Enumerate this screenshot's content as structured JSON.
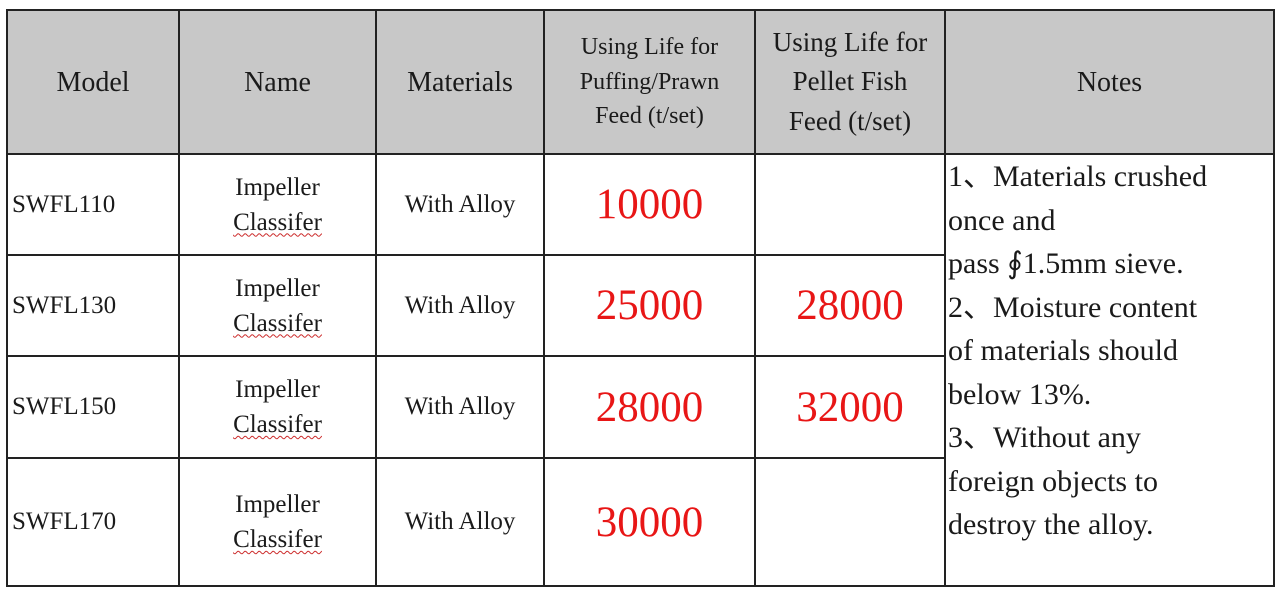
{
  "headers": {
    "model": "Model",
    "name": "Name",
    "materials": "Materials",
    "puffing_line1": "Using Life for",
    "puffing_line2": "Puffing/Prawn",
    "puffing_line3": "Feed (t/set)",
    "pellet_line1": "Using Life for",
    "pellet_line2": "Pellet Fish",
    "pellet_line3": "Feed (t/set)",
    "notes": "Notes"
  },
  "rows": [
    {
      "model": "SWFL110",
      "name_line1": "Impeller",
      "name_line2": "Classifer",
      "materials": "With Alloy",
      "puffing_life": "10000",
      "pellet_life": ""
    },
    {
      "model": "SWFL130",
      "name_line1": "Impeller",
      "name_line2": "Classifer",
      "materials": "With Alloy",
      "puffing_life": "25000",
      "pellet_life": "28000"
    },
    {
      "model": "SWFL150",
      "name_line1": "Impeller",
      "name_line2": "Classifer",
      "materials": "With Alloy",
      "puffing_life": "28000",
      "pellet_life": "32000"
    },
    {
      "model": "SWFL170",
      "name_line1": "Impeller",
      "name_line2": "Classifer",
      "materials": "With Alloy",
      "puffing_life": "30000",
      "pellet_life": ""
    }
  ],
  "notes": [
    "1、Materials crushed",
    "once and",
    "pass ∮1.5mm sieve.",
    "2、Moisture content",
    "of materials should",
    "below 13%.",
    "3、Without any",
    "foreign objects to",
    "destroy the alloy."
  ],
  "colors": {
    "header_bg": "#c8c8c8",
    "life_value": "#e81616",
    "border": "#222222"
  }
}
